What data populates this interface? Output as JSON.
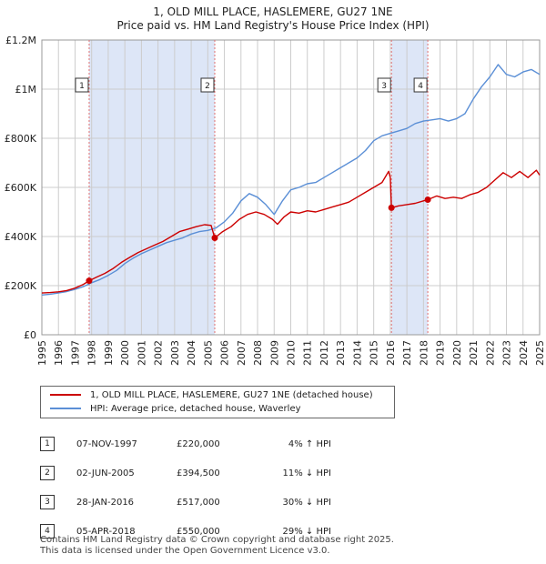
{
  "title_line1": "1, OLD MILL PLACE, HASLEMERE, GU27 1NE",
  "title_line2": "Price paid vs. HM Land Registry's House Price Index (HPI)",
  "colors": {
    "property": "#cc0000",
    "hpi": "#5b8fd6",
    "shade": "#dde6f7",
    "marker_line": "#e07070",
    "grid": "#cccccc"
  },
  "legend": {
    "property": "1, OLD MILL PLACE, HASLEMERE, GU27 1NE (detached house)",
    "hpi": "HPI: Average price, detached house, Waverley"
  },
  "sales": [
    {
      "num": "1",
      "date": "07-NOV-1997",
      "price": "£220,000",
      "hpi": "4% ↑ HPI"
    },
    {
      "num": "2",
      "date": "02-JUN-2005",
      "price": "£394,500",
      "hpi": "11% ↓ HPI"
    },
    {
      "num": "3",
      "date": "28-JAN-2016",
      "price": "£517,000",
      "hpi": "30% ↓ HPI"
    },
    {
      "num": "4",
      "date": "05-APR-2018",
      "price": "£550,000",
      "hpi": "29% ↓ HPI"
    }
  ],
  "footer_line1": "Contains HM Land Registry data © Crown copyright and database right 2025.",
  "footer_line2": "This data is licensed under the Open Government Licence v3.0.",
  "chart_data": {
    "type": "line",
    "title": "1, OLD MILL PLACE, HASLEMERE, GU27 1NE",
    "subtitle": "Price paid vs. HM Land Registry's House Price Index (HPI)",
    "xlabel": "",
    "ylabel": "",
    "xlim": [
      1995,
      2025
    ],
    "ylim": [
      0,
      1200000
    ],
    "grid": true,
    "legend_position": "bottom",
    "y_ticks": [
      {
        "value": 0,
        "label": "£0"
      },
      {
        "value": 200000,
        "label": "£200K"
      },
      {
        "value": 400000,
        "label": "£400K"
      },
      {
        "value": 600000,
        "label": "£600K"
      },
      {
        "value": 800000,
        "label": "£800K"
      },
      {
        "value": 1000000,
        "label": "£1M"
      },
      {
        "value": 1200000,
        "label": "£1.2M"
      }
    ],
    "x_ticks": [
      "1995",
      "1996",
      "1997",
      "1998",
      "1999",
      "2000",
      "2001",
      "2002",
      "2003",
      "2004",
      "2005",
      "2006",
      "2007",
      "2008",
      "2009",
      "2010",
      "2011",
      "2012",
      "2013",
      "2014",
      "2015",
      "2016",
      "2017",
      "2018",
      "2019",
      "2020",
      "2021",
      "2022",
      "2023",
      "2024",
      "2025"
    ],
    "shaded_ranges": [
      [
        1997.85,
        2005.42
      ],
      [
        2016.07,
        2018.26
      ]
    ],
    "markers": [
      {
        "label": "1",
        "x": 1997.85,
        "y": 220000
      },
      {
        "label": "2",
        "x": 2005.42,
        "y": 394500
      },
      {
        "label": "3",
        "x": 2016.07,
        "y": 517000
      },
      {
        "label": "4",
        "x": 2018.26,
        "y": 550000
      }
    ],
    "series": [
      {
        "name": "1, OLD MILL PLACE, HASLEMERE, GU27 1NE (detached house)",
        "color": "#cc0000",
        "x": [
          1995.0,
          1995.5,
          1996.0,
          1996.5,
          1997.0,
          1997.5,
          1997.85,
          1998.3,
          1998.8,
          1999.3,
          1999.8,
          2000.3,
          2000.8,
          2001.3,
          2001.8,
          2002.3,
          2002.8,
          2003.3,
          2003.8,
          2004.3,
          2004.8,
          2005.2,
          2005.42,
          2005.9,
          2006.4,
          2006.9,
          2007.4,
          2007.9,
          2008.4,
          2008.9,
          2009.2,
          2009.6,
          2010.0,
          2010.5,
          2011.0,
          2011.5,
          2012.0,
          2012.5,
          2013.0,
          2013.5,
          2014.0,
          2014.5,
          2015.0,
          2015.5,
          2015.9,
          2016.0,
          2016.07,
          2016.5,
          2017.0,
          2017.5,
          2018.0,
          2018.26,
          2018.8,
          2019.3,
          2019.8,
          2020.3,
          2020.8,
          2021.3,
          2021.8,
          2022.3,
          2022.8,
          2023.3,
          2023.8,
          2024.3,
          2024.8,
          2025.0
        ],
        "y": [
          170000,
          172000,
          175000,
          180000,
          190000,
          205000,
          220000,
          235000,
          250000,
          270000,
          295000,
          315000,
          335000,
          350000,
          365000,
          380000,
          400000,
          420000,
          430000,
          440000,
          448000,
          445000,
          394500,
          420000,
          440000,
          470000,
          490000,
          500000,
          490000,
          470000,
          450000,
          480000,
          500000,
          495000,
          505000,
          500000,
          510000,
          520000,
          530000,
          540000,
          560000,
          580000,
          600000,
          620000,
          665000,
          640000,
          517000,
          525000,
          530000,
          535000,
          545000,
          550000,
          565000,
          555000,
          560000,
          555000,
          570000,
          580000,
          600000,
          630000,
          660000,
          640000,
          665000,
          640000,
          670000,
          650000
        ]
      },
      {
        "name": "HPI: Average price, detached house, Waverley",
        "color": "#5b8fd6",
        "x": [
          1995.0,
          1995.5,
          1996.0,
          1996.5,
          1997.0,
          1997.5,
          1998.0,
          1998.5,
          1999.0,
          1999.5,
          2000.0,
          2000.5,
          2001.0,
          2001.5,
          2002.0,
          2002.5,
          2003.0,
          2003.5,
          2004.0,
          2004.5,
          2005.0,
          2005.5,
          2006.0,
          2006.5,
          2007.0,
          2007.5,
          2008.0,
          2008.5,
          2009.0,
          2009.5,
          2010.0,
          2010.5,
          2011.0,
          2011.5,
          2012.0,
          2012.5,
          2013.0,
          2013.5,
          2014.0,
          2014.5,
          2015.0,
          2015.5,
          2016.0,
          2016.5,
          2017.0,
          2017.5,
          2018.0,
          2018.5,
          2019.0,
          2019.5,
          2020.0,
          2020.5,
          2021.0,
          2021.5,
          2022.0,
          2022.5,
          2023.0,
          2023.5,
          2024.0,
          2024.5,
          2025.0
        ],
        "y": [
          162000,
          165000,
          170000,
          176000,
          185000,
          196000,
          212000,
          225000,
          242000,
          262000,
          290000,
          312000,
          330000,
          345000,
          360000,
          375000,
          385000,
          395000,
          410000,
          420000,
          425000,
          435000,
          460000,
          495000,
          545000,
          575000,
          560000,
          530000,
          490000,
          545000,
          590000,
          600000,
          615000,
          620000,
          640000,
          660000,
          680000,
          700000,
          720000,
          750000,
          790000,
          810000,
          820000,
          830000,
          840000,
          860000,
          870000,
          875000,
          880000,
          870000,
          880000,
          900000,
          960000,
          1010000,
          1050000,
          1100000,
          1060000,
          1050000,
          1070000,
          1080000,
          1060000
        ]
      }
    ]
  }
}
